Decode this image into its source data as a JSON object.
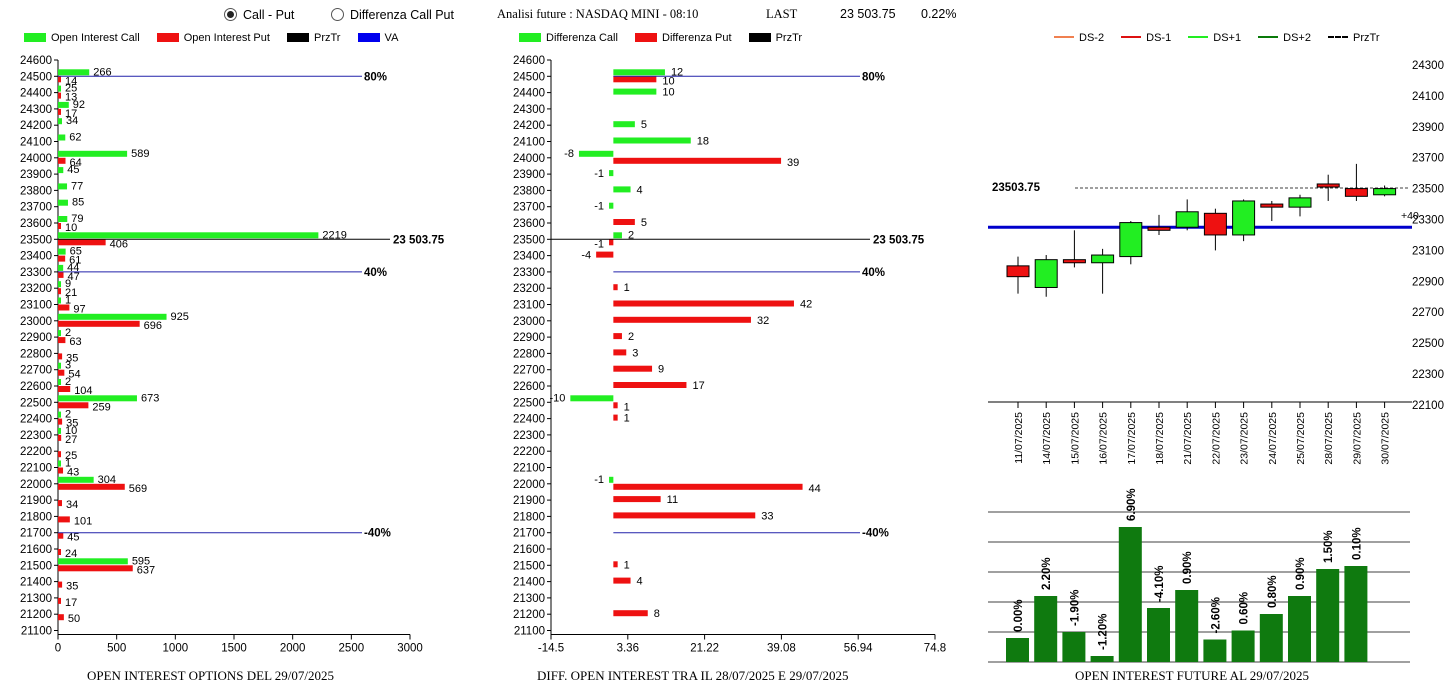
{
  "controls": {
    "radio_call_put": "Call - Put",
    "radio_diff": "Differenza Call Put"
  },
  "header": {
    "title": "Analisi future : NASDAQ MINI - 08:10",
    "last_label": "LAST",
    "last_value": "23 503.75",
    "change": "0.22%"
  },
  "colors": {
    "call": "#22ee22",
    "put": "#ee1111",
    "przTr": "#000000",
    "va": "#0000ee",
    "bar_green": "#0f7a0f"
  },
  "chart_data": [
    {
      "type": "bar",
      "orientation": "horizontal",
      "title": "OPEN INTEREST OPTIONS DEL 29/07/2025",
      "legend": [
        "Open Interest Call",
        "Open Interest Put",
        "PrzTr",
        "VA"
      ],
      "strikes": [
        24600,
        24500,
        24400,
        24300,
        24200,
        24100,
        24000,
        23900,
        23800,
        23700,
        23600,
        23500,
        23400,
        23300,
        23200,
        23100,
        23000,
        22900,
        22800,
        22700,
        22600,
        22500,
        22400,
        22300,
        22200,
        22100,
        22000,
        21900,
        21800,
        21700,
        21600,
        21500,
        21400,
        21300,
        21200,
        21100
      ],
      "series": [
        {
          "name": "Open Interest Call",
          "values": [
            null,
            266,
            25,
            92,
            34,
            62,
            589,
            45,
            77,
            85,
            79,
            2219,
            65,
            44,
            9,
            1,
            925,
            2,
            null,
            3,
            2,
            673,
            2,
            10,
            null,
            1,
            304,
            null,
            null,
            null,
            null,
            595,
            null,
            null,
            null,
            null
          ]
        },
        {
          "name": "Open Interest Put",
          "values": [
            null,
            14,
            13,
            17,
            null,
            null,
            64,
            null,
            null,
            null,
            10,
            406,
            61,
            47,
            21,
            97,
            696,
            63,
            35,
            54,
            104,
            259,
            35,
            27,
            25,
            43,
            569,
            34,
            101,
            45,
            24,
            637,
            35,
            17,
            50,
            null
          ]
        }
      ],
      "xticks": [
        0,
        500,
        1000,
        1500,
        2000,
        2500,
        3000
      ],
      "xlim": [
        0,
        3000
      ],
      "lines": [
        {
          "strike": 24500,
          "label": "80%"
        },
        {
          "strike": 23500,
          "label": "23 503.75"
        },
        {
          "strike": 23300,
          "label": "40%"
        },
        {
          "strike": 21700,
          "label": "-40%"
        }
      ]
    },
    {
      "type": "bar",
      "orientation": "horizontal",
      "title": "DIFF. OPEN INTEREST TRA IL 28/07/2025 E 29/07/2025",
      "legend": [
        "Differenza Call",
        "Differenza Put",
        "PrzTr"
      ],
      "strikes": [
        24600,
        24500,
        24400,
        24300,
        24200,
        24100,
        24000,
        23900,
        23800,
        23700,
        23600,
        23500,
        23400,
        23300,
        23200,
        23100,
        23000,
        22900,
        22800,
        22700,
        22600,
        22500,
        22400,
        22300,
        22200,
        22100,
        22000,
        21900,
        21800,
        21700,
        21600,
        21500,
        21400,
        21300,
        21200,
        21100
      ],
      "series": [
        {
          "name": "Differenza Call",
          "values": [
            null,
            12,
            10,
            null,
            5,
            18,
            -8,
            -1,
            4,
            -1,
            null,
            2,
            null,
            null,
            null,
            null,
            null,
            null,
            null,
            null,
            null,
            -10,
            null,
            null,
            null,
            null,
            -1,
            null,
            null,
            null,
            null,
            null,
            null,
            null,
            null,
            null
          ]
        },
        {
          "name": "Differenza Put",
          "values": [
            null,
            10,
            null,
            null,
            null,
            null,
            39,
            null,
            null,
            null,
            5,
            -1,
            -4,
            null,
            1,
            42,
            32,
            2,
            3,
            9,
            17,
            1,
            1,
            null,
            null,
            null,
            44,
            11,
            33,
            null,
            null,
            1,
            4,
            null,
            8,
            null
          ]
        }
      ],
      "xticks": [
        "-14.5",
        "3.36",
        "21.22",
        "39.08",
        "56.94",
        "74.8"
      ],
      "xlim": [
        -14.5,
        74.8
      ],
      "lines": [
        {
          "strike": 24500,
          "label": "80%"
        },
        {
          "strike": 23500,
          "label": "23 503.75"
        },
        {
          "strike": 23300,
          "label": "40%"
        },
        {
          "strike": 21700,
          "label": "-40%"
        }
      ]
    },
    {
      "type": "candlestick",
      "legend": [
        "DS-2",
        "DS-1",
        "DS+1",
        "DS+2",
        "PrzTr"
      ],
      "legend_colors": [
        "#f08050",
        "#dd1111",
        "#22ee22",
        "#0a7a0a",
        "#000000"
      ],
      "dates": [
        "11/07/2025",
        "14/07/2025",
        "15/07/2025",
        "16/07/2025",
        "17/07/2025",
        "18/07/2025",
        "21/07/2025",
        "22/07/2025",
        "23/07/2025",
        "24/07/2025",
        "25/07/2025",
        "28/07/2025",
        "29/07/2025",
        "30/07/2025"
      ],
      "candles": [
        {
          "open": 23000,
          "close": 22930,
          "high": 23060,
          "low": 22820
        },
        {
          "open": 22860,
          "close": 23040,
          "high": 23070,
          "low": 22800
        },
        {
          "open": 23040,
          "close": 23020,
          "high": 23230,
          "low": 22990
        },
        {
          "open": 23020,
          "close": 23070,
          "high": 23110,
          "low": 22820
        },
        {
          "open": 23060,
          "close": 23280,
          "high": 23290,
          "low": 23010
        },
        {
          "open": 23250,
          "close": 23230,
          "high": 23330,
          "low": 23200
        },
        {
          "open": 23250,
          "close": 23350,
          "high": 23430,
          "low": 23230
        },
        {
          "open": 23340,
          "close": 23200,
          "high": 23370,
          "low": 23100
        },
        {
          "open": 23200,
          "close": 23420,
          "high": 23430,
          "low": 23160
        },
        {
          "open": 23400,
          "close": 23380,
          "high": 23420,
          "low": 23290
        },
        {
          "open": 23380,
          "close": 23440,
          "high": 23460,
          "low": 23320
        },
        {
          "open": 23530,
          "close": 23510,
          "high": 23590,
          "low": 23420
        },
        {
          "open": 23500,
          "close": 23450,
          "high": 23660,
          "low": 23420
        },
        {
          "open": 23460,
          "close": 23500,
          "high": 23520,
          "low": 23450
        }
      ],
      "yticks": [
        22100,
        22300,
        22500,
        22700,
        22900,
        23100,
        23300,
        23500,
        23700,
        23900,
        24100,
        24300
      ],
      "ylim": [
        22100,
        24350
      ],
      "last_label": "23503.75",
      "last_value": 23503.75,
      "va_level": 23250,
      "va_label": "+40"
    },
    {
      "type": "bar",
      "title": "OPEN INTEREST FUTURE AL 29/07/2025",
      "labels": [
        "0.00%",
        "2.20%",
        "-1.90%",
        "-1.20%",
        "6.90%",
        "-4.10%",
        "0.90%",
        "-2.60%",
        "0.60%",
        "0.80%",
        "0.90%",
        "1.50%",
        "0.10%"
      ],
      "values": [
        0.8,
        2.2,
        1.0,
        0.2,
        4.5,
        1.8,
        2.4,
        0.75,
        1.05,
        1.6,
        2.2,
        3.1,
        3.2
      ],
      "ylim": [
        0,
        5
      ]
    }
  ]
}
